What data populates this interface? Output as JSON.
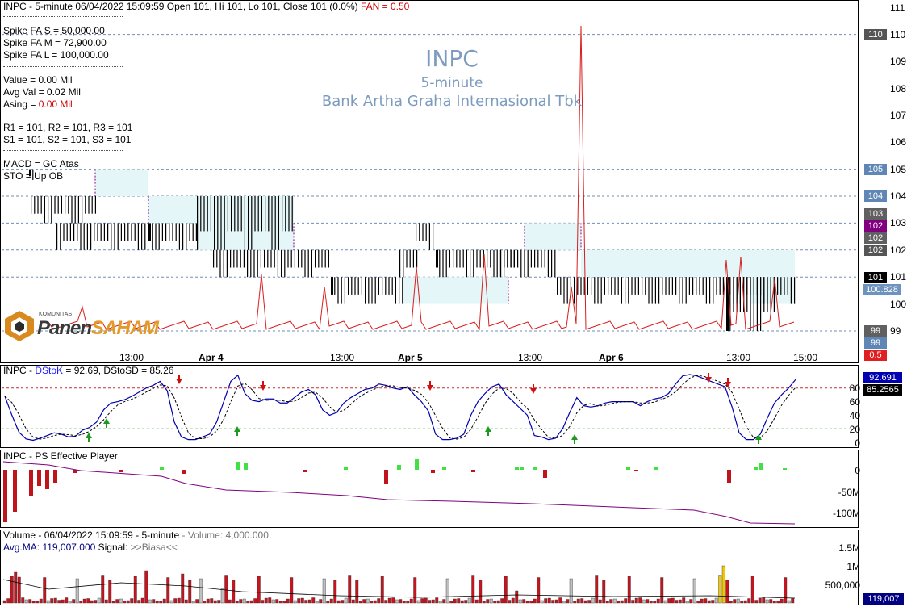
{
  "colors": {
    "candle_box": "#e4f6f8",
    "fan_line": "#d81e1e",
    "dstok": "#0000b0",
    "up_arrow": "#1d9a1d",
    "down_arrow": "#d01010",
    "bar_red": "#c0141c",
    "bar_green": "#41e141",
    "ps_line": "#800080",
    "volume_red": "#c8141e",
    "volume_gray": "#c0c0c0",
    "volume_yellow": "#f0c800"
  },
  "header": {
    "title_line": "INPC - 5-minute 06/04/2022 15:09:59 Open 101, Hi 101, Lo 101, Close 101 (0.0%)",
    "fan_label": "FAN = 0.50",
    "spike_s": "Spike FA S =  50,000.00",
    "spike_m": "Spike FA M =  72,900.00",
    "spike_l": "Spike FA L =  100,000.00",
    "value": "Value = 0.00 Mil",
    "avg_val": "Avg Val = 0.02 Mil",
    "asing_label": "Asing = ",
    "asing_value": "0.00 Mil",
    "r_levels": "R1 = 101, R2 = 101, R3 = 101",
    "s_levels": "S1 = 101, S2 = 101, S3 = 101",
    "macd": "MACD =  GC Atas",
    "sto": "STO  =  Up OB"
  },
  "watermark": {
    "ticker": "INPC",
    "interval": "5-minute",
    "company": "Bank Artha Graha Internasional Tbk"
  },
  "logo": {
    "small_text": "KOMUNITAS",
    "brand_a": "Panen",
    "brand_b": "SAHAM"
  },
  "price_labels": [
    {
      "text": "110",
      "bg": "#555555"
    },
    {
      "text": "105",
      "bg": "#5f86b5"
    },
    {
      "text": "104",
      "bg": "#5f86b5"
    },
    {
      "text": "103",
      "bg": "#606060"
    },
    {
      "text": "102",
      "bg": "#800080"
    },
    {
      "text": "102",
      "bg": "#606060"
    },
    {
      "text": "102",
      "bg": "#555555"
    },
    {
      "text": "101",
      "bg": "#000000"
    },
    {
      "text": "100.828",
      "bg": "#6f93bf"
    },
    {
      "text": "99",
      "bg": "#606060"
    },
    {
      "text": "99",
      "bg": "#5f86b5"
    },
    {
      "text": "0.5",
      "bg": "#e02020"
    }
  ],
  "sto_labels": [
    {
      "text": "92.691",
      "bg": "#0000b0"
    },
    {
      "text": "85.2565",
      "bg": "#000000"
    }
  ],
  "volume_label": {
    "text": "119,007",
    "bg": "#000080"
  },
  "dsto_header": {
    "prefix": "INPC - ",
    "name": "DStoK",
    "value": " = 92.69, DStoSD = 85.26"
  },
  "ps_header": "INPC - PS Effective Player",
  "volume_header": {
    "prefix": "Volume - 06/04/2022 15:09:59 - 5-minute ",
    "volume": " - Volume: 4,000.000",
    "avg": "Avg.MA: 119,007.000 ",
    "signal_label": " Signal: ",
    "signal": ">>Biasa<<"
  },
  "time_labels": [
    "13:00",
    "Apr 4",
    "13:00",
    "Apr 5",
    "13:00",
    "Apr 6",
    "13:00",
    "15:00"
  ],
  "chart_data": [
    {
      "type": "candlestick",
      "title": "INPC 5-minute",
      "y_axis_ticks": [
        "111",
        "110",
        "109",
        "108",
        "107",
        "106",
        "105",
        "104",
        "103",
        "102",
        "101",
        "100",
        "99"
      ],
      "ylim": [
        98.5,
        111.2
      ],
      "reference_lines": [
        110,
        105,
        104,
        103,
        102,
        101,
        99
      ],
      "last_close": 101,
      "fan_series_value": 0.5
    },
    {
      "type": "line",
      "title": "DStoK / DStoSD",
      "y_axis_ticks": [
        "80",
        "60",
        "40",
        "20",
        "0"
      ],
      "ylim": [
        0,
        100
      ],
      "reference_lines": [
        80,
        20
      ],
      "series": [
        {
          "name": "DStoK",
          "last": 92.69
        },
        {
          "name": "DStoSD",
          "last": 85.26
        }
      ],
      "dstok": [
        68,
        40,
        15,
        5,
        3,
        6,
        10,
        14,
        12,
        8,
        9,
        18,
        22,
        30,
        48,
        58,
        60,
        63,
        68,
        74,
        80,
        84,
        90,
        76,
        30,
        8,
        4,
        4,
        8,
        12,
        30,
        60,
        90,
        99,
        72,
        62,
        60,
        64,
        64,
        58,
        58,
        66,
        74,
        78,
        70,
        48,
        40,
        44,
        58,
        66,
        72,
        78,
        80,
        86,
        84,
        80,
        78,
        82,
        70,
        60,
        46,
        12,
        4,
        4,
        6,
        12,
        40,
        60,
        72,
        82,
        86,
        70,
        60,
        50,
        40,
        10,
        8,
        4,
        6,
        20,
        44,
        66,
        54,
        52,
        54,
        58,
        60,
        60,
        60,
        60,
        54,
        60,
        64,
        66,
        72,
        86,
        98,
        100,
        98,
        94,
        90,
        86,
        82,
        52,
        14,
        4,
        4,
        12,
        36,
        58,
        70,
        80,
        92.69
      ]
    },
    {
      "type": "bar",
      "title": "PS Effective Player",
      "y_axis_ticks": [
        "0",
        "-50M",
        "-100M"
      ]
    },
    {
      "type": "bar",
      "title": "Volume",
      "y_axis_ticks": [
        "1.5M",
        "1M",
        "500,000"
      ],
      "last_volume": 4000,
      "avg_ma": 119007
    }
  ]
}
